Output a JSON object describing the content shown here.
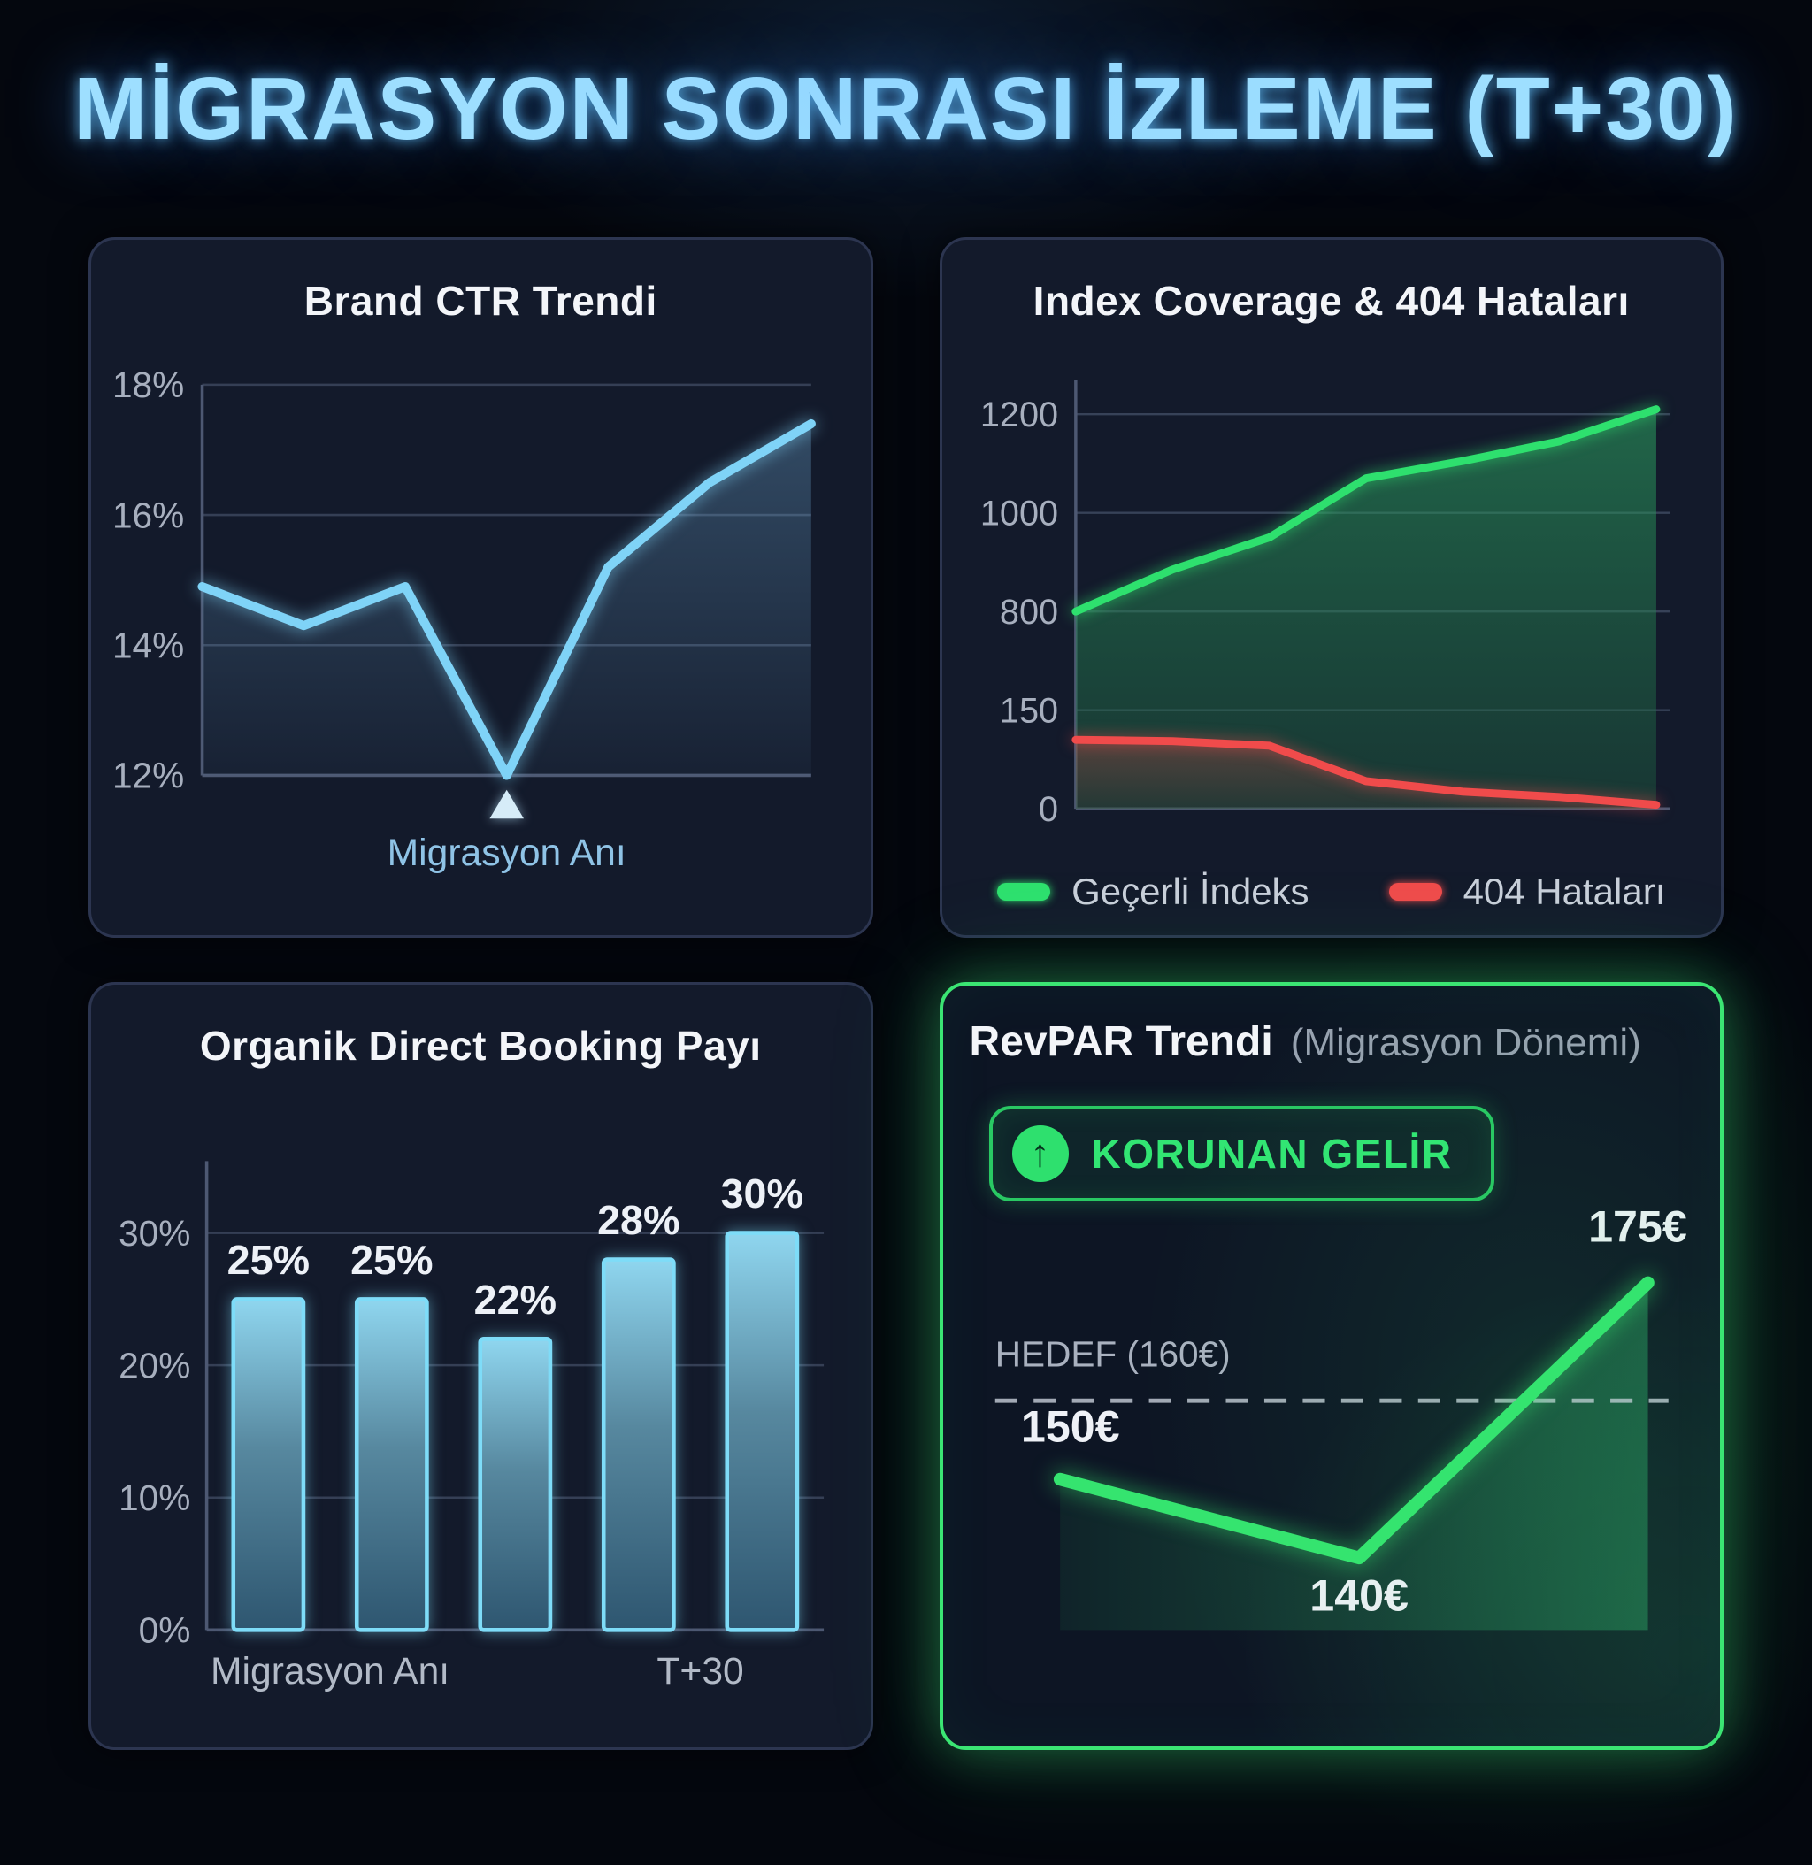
{
  "page_title": "MİGRASYON SONRASI İZLEME (T+30)",
  "colors": {
    "accent_blue": "#7fd3f7",
    "accent_green": "#2ee06e",
    "accent_red": "#f04b4b",
    "title_text": "#9edfff",
    "panel_bg": "#131a2b",
    "panel_border": "#2c3550",
    "revpar_border": "#3be573",
    "grid_line": "#414c64",
    "axis_line": "#4d5872",
    "tick_text": "#a7afbe",
    "bar_stroke": "#7edcf8",
    "target_line": "#bcc3cf",
    "annotation_text": "#8fc3e6"
  },
  "chart_data": [
    {
      "id": "brand-ctr",
      "type": "line",
      "title": "Brand CTR Trendi",
      "yticks": [
        18,
        16,
        14,
        12
      ],
      "ytick_labels": [
        "18%",
        "16%",
        "14%",
        "12%"
      ],
      "ylim": [
        12,
        18
      ],
      "values": [
        14.9,
        14.3,
        14.9,
        12.0,
        15.2,
        16.5,
        17.4
      ],
      "line_color": "#7fd3f7",
      "annotation": {
        "index": 3,
        "label": "Migrasyon Anı",
        "marker": "triangle-up"
      }
    },
    {
      "id": "index-coverage",
      "type": "area",
      "title": "Index Coverage & 404 Hataları",
      "ytick_stops": [
        0,
        150,
        800,
        1000,
        1200
      ],
      "ytick_labels": [
        "0",
        "150",
        "800",
        "1000",
        "1200"
      ],
      "series": [
        {
          "name": "Geçerli İndeks",
          "color": "#2ee06e",
          "values": [
            800,
            885,
            950,
            1070,
            1105,
            1145,
            1210
          ]
        },
        {
          "name": "404 Hataları",
          "color": "#f04b4b",
          "values": [
            105,
            103,
            96,
            42,
            26,
            18,
            6
          ]
        }
      ],
      "legend_position": "bottom"
    },
    {
      "id": "organic-booking",
      "type": "bar",
      "title": "Organik Direct Booking Payı",
      "values": [
        25,
        25,
        22,
        28,
        30
      ],
      "bar_labels": [
        "25%",
        "25%",
        "22%",
        "28%",
        "30%"
      ],
      "yticks": [
        30,
        20,
        10,
        0
      ],
      "ytick_labels": [
        "30%",
        "20%",
        "10%",
        "0%"
      ],
      "ylim": [
        0,
        32
      ],
      "xtick_labels": [
        "Migrasyon Anı",
        "T+30"
      ],
      "bar_color": "#7edcf8"
    },
    {
      "id": "revpar",
      "type": "line",
      "title": "RevPAR Trendi",
      "subtitle": "(Migrasyon Dönemi)",
      "badge": {
        "label": "KORUNAN GELİR",
        "icon": "arrow-up-icon"
      },
      "values": [
        150,
        140,
        175
      ],
      "point_labels": [
        "150€",
        "140€",
        "175€"
      ],
      "target": {
        "label": "HEDEF (160€)",
        "value": 160
      },
      "ylim": [
        133,
        183
      ],
      "line_color": "#35e46f"
    }
  ]
}
